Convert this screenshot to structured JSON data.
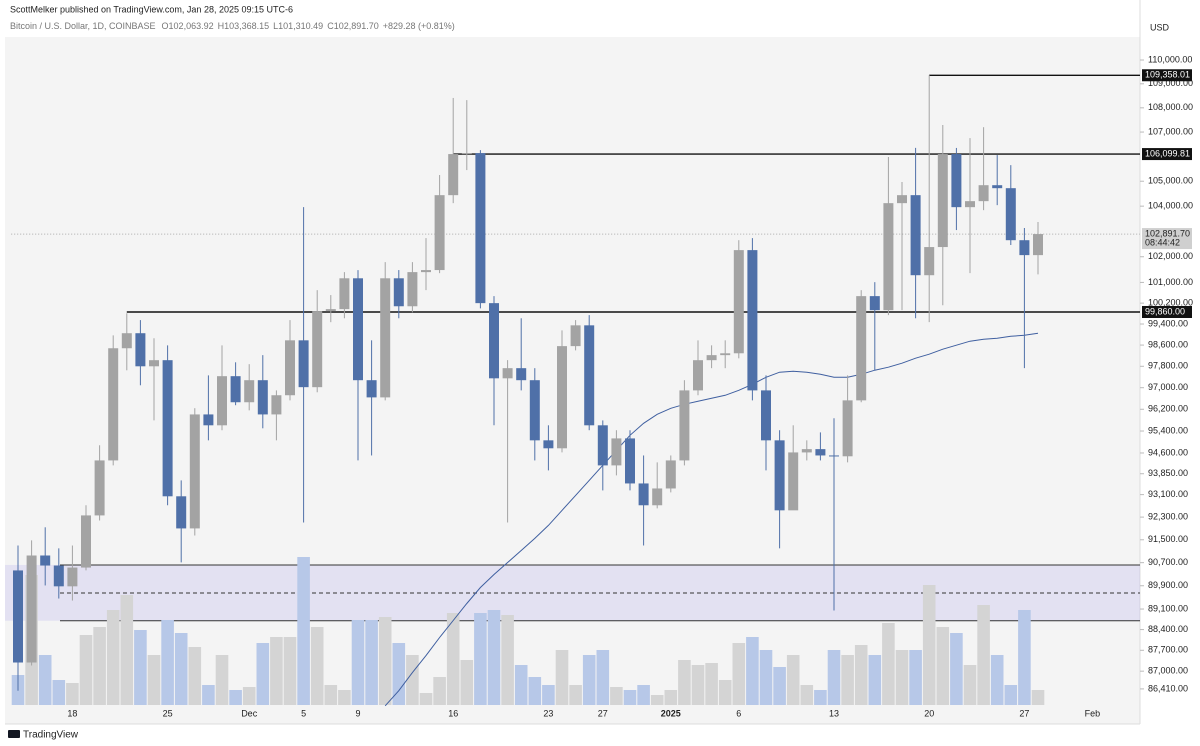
{
  "header": {
    "publisher": "ScottMelker published on TradingView.com, Jan 28, 2025 09:15 UTC-6",
    "symbol": "Bitcoin / U.S. Dollar, 1D, COINBASE",
    "ohlc": [
      "O102,063.92",
      "H103,368.15",
      "L101,310.49",
      "C102,891.70",
      "+829.28 (+0.81%)"
    ]
  },
  "chart_data": {
    "type": "candlestick",
    "currency": "USD",
    "log_scale": true,
    "ylim": [
      85845,
      112046
    ],
    "yticks": [
      {
        "value": 110000,
        "label": "110,000.00"
      },
      {
        "value": 109000,
        "label": "109,000.00"
      },
      {
        "value": 108000,
        "label": "108,000.00"
      },
      {
        "value": 107000,
        "label": "107,000.00"
      },
      {
        "value": 105000,
        "label": "105,000.00"
      },
      {
        "value": 104000,
        "label": "104,000.00"
      },
      {
        "value": 102000,
        "label": "102,000.00"
      },
      {
        "value": 101000,
        "label": "101,000.00"
      },
      {
        "value": 100200,
        "label": "100,200.00"
      },
      {
        "value": 99400,
        "label": "99,400.00"
      },
      {
        "value": 98600,
        "label": "98,600.00"
      },
      {
        "value": 97800,
        "label": "97,800.00"
      },
      {
        "value": 97000,
        "label": "97,000.00"
      },
      {
        "value": 96200,
        "label": "96,200.00"
      },
      {
        "value": 95400,
        "label": "95,400.00"
      },
      {
        "value": 94600,
        "label": "94,600.00"
      },
      {
        "value": 93850,
        "label": "93,850.00"
      },
      {
        "value": 93100,
        "label": "93,100.00"
      },
      {
        "value": 92300,
        "label": "92,300.00"
      },
      {
        "value": 91500,
        "label": "91,500.00"
      },
      {
        "value": 90700,
        "label": "90,700.00"
      },
      {
        "value": 89900,
        "label": "89,900.00"
      },
      {
        "value": 89100,
        "label": "89,100.00"
      },
      {
        "value": 88400,
        "label": "88,400.00"
      },
      {
        "value": 87700,
        "label": "87,700.00"
      },
      {
        "value": 87000,
        "label": "87,000.00"
      },
      {
        "value": 86410,
        "label": "86,410.00"
      }
    ],
    "categories": [
      null,
      null,
      null,
      null,
      "18",
      null,
      null,
      null,
      null,
      null,
      null,
      "25",
      null,
      null,
      null,
      null,
      null,
      "Dec",
      null,
      null,
      null,
      "5",
      null,
      null,
      null,
      "9",
      null,
      null,
      null,
      null,
      null,
      null,
      "16",
      null,
      null,
      null,
      null,
      null,
      null,
      "23",
      null,
      null,
      null,
      "27",
      null,
      null,
      null,
      null,
      "2025",
      null,
      null,
      null,
      null,
      "6",
      null,
      null,
      null,
      null,
      null,
      null,
      "13",
      null,
      null,
      null,
      null,
      null,
      null,
      "20",
      null,
      null,
      null,
      null,
      null,
      null,
      "27",
      null,
      null,
      null,
      null,
      "Feb",
      null,
      null,
      null
    ],
    "candles": {
      "open": [
        90430,
        87290,
        90950,
        90600,
        89880,
        90530,
        92360,
        94330,
        98480,
        99050,
        97800,
        98030,
        93040,
        91900,
        96010,
        95610,
        97430,
        96460,
        97280,
        96010,
        96720,
        98780,
        97020,
        99890,
        99970,
        101160,
        97280,
        96640,
        101160,
        100080,
        101400,
        101480,
        104440,
        106100,
        106140,
        100200,
        97350,
        97730,
        97280,
        95060,
        94770,
        98560,
        99350,
        95610,
        94150,
        95130,
        93500,
        92720,
        93320,
        94330,
        96900,
        98030,
        98220,
        98290,
        102260,
        96900,
        95060,
        92540,
        94620,
        94740,
        94510,
        94480,
        96530,
        100470,
        99930,
        104120,
        104440,
        101280,
        102380,
        106100,
        103960,
        104200,
        104840,
        104720,
        102650,
        102063.92,
        null,
        null,
        null,
        null,
        null,
        null,
        null
      ],
      "high": [
        91300,
        91480,
        91940,
        91200,
        91300,
        92720,
        94880,
        98970,
        99810,
        99550,
        98860,
        98590,
        93610,
        96240,
        97460,
        98590,
        97950,
        97880,
        98220,
        96900,
        99550,
        103960,
        100700,
        100510,
        101400,
        101480,
        98780,
        101790,
        101480,
        101790,
        102730,
        105250,
        108410,
        108320,
        106260,
        100470,
        98030,
        99620,
        97730,
        95610,
        99160,
        99550,
        99740,
        95790,
        95430,
        95430,
        94510,
        94260,
        94510,
        97280,
        98780,
        98590,
        98780,
        102650,
        102730,
        97460,
        95430,
        95610,
        95060,
        95350,
        95870,
        97460,
        100700,
        101010,
        105980,
        104970,
        106350,
        109358.01,
        107290,
        106350,
        106750,
        107200,
        106060,
        105650,
        103130,
        103368.15,
        null,
        null,
        null,
        null,
        null,
        null,
        null
      ],
      "low": [
        86350,
        87190,
        89910,
        89460,
        89390,
        90430,
        92180,
        94150,
        97650,
        97090,
        95790,
        92720,
        90710,
        91650,
        95060,
        95430,
        96350,
        96160,
        95500,
        95060,
        96530,
        92110,
        96830,
        99470,
        99620,
        94330,
        94510,
        96530,
        99620,
        99850,
        100700,
        101360,
        104120,
        105450,
        100000,
        95610,
        92110,
        96900,
        94330,
        93970,
        94620,
        98400,
        95430,
        93250,
        93790,
        93250,
        91300,
        92610,
        93180,
        94150,
        96720,
        97730,
        97730,
        98100,
        96530,
        93970,
        91200,
        92720,
        94330,
        94330,
        89050,
        94260,
        96460,
        97650,
        99740,
        99930,
        99620,
        99470,
        100120,
        103050,
        101360,
        103840,
        104040,
        102460,
        97730,
        101310.49,
        null,
        null,
        null,
        null,
        null,
        null,
        null
      ],
      "close": [
        87290,
        90950,
        90600,
        89880,
        90530,
        92360,
        94330,
        98480,
        99050,
        97800,
        98030,
        93040,
        91900,
        96010,
        95610,
        97430,
        96460,
        97280,
        96010,
        96720,
        98780,
        97020,
        99890,
        99970,
        101160,
        97280,
        96640,
        101160,
        100080,
        101400,
        101480,
        104440,
        106100,
        106140,
        100200,
        97350,
        97730,
        97280,
        95060,
        94770,
        98560,
        99350,
        95610,
        94150,
        95130,
        93500,
        92720,
        93320,
        94330,
        96900,
        98030,
        98220,
        98290,
        102260,
        96900,
        95060,
        92540,
        94620,
        94740,
        94510,
        94480,
        96530,
        100470,
        99930,
        104120,
        104440,
        101280,
        102380,
        106100,
        103960,
        104200,
        104840,
        104720,
        102650,
        102063.92,
        102891.7,
        null,
        null,
        null,
        null,
        null,
        null,
        null
      ]
    },
    "volume": [
      30,
      130,
      50,
      25,
      22,
      70,
      78,
      95,
      110,
      75,
      50,
      85,
      72,
      58,
      20,
      50,
      15,
      18,
      62,
      68,
      68,
      148,
      78,
      20,
      15,
      85,
      85,
      88,
      62,
      50,
      12,
      28,
      92,
      45,
      92,
      95,
      90,
      40,
      28,
      20,
      55,
      20,
      50,
      55,
      18,
      15,
      20,
      10,
      15,
      45,
      40,
      42,
      25,
      62,
      68,
      55,
      38,
      50,
      20,
      15,
      55,
      50,
      60,
      50,
      82,
      55,
      55,
      120,
      78,
      72,
      40,
      100,
      50,
      20,
      95,
      15,
      null,
      null,
      null,
      null,
      null,
      null,
      null
    ],
    "ma": [
      null,
      null,
      null,
      null,
      null,
      null,
      null,
      null,
      null,
      null,
      null,
      null,
      null,
      null,
      null,
      null,
      null,
      null,
      null,
      null,
      null,
      null,
      null,
      null,
      null,
      null,
      null,
      85852,
      86350,
      86953,
      87523,
      88132,
      88708,
      89290,
      89840,
      90290,
      90707,
      91126,
      91548,
      92006,
      92538,
      93073,
      93610,
      94152,
      94696,
      95243,
      95682,
      96014,
      96236,
      96384,
      96495,
      96606,
      96718,
      96904,
      97127,
      97389,
      97577,
      97615,
      97577,
      97502,
      97389,
      97389,
      97502,
      97653,
      97766,
      97915,
      98103,
      98254,
      98443,
      98594,
      98745,
      98820,
      98858,
      98934,
      98972,
      99048,
      null,
      null,
      null,
      null,
      null,
      null,
      null
    ],
    "levels": [
      {
        "value": 109358.01,
        "label": "109,358.01"
      },
      {
        "value": 106099.81,
        "label": "106,099.81"
      },
      {
        "value": 99860,
        "label": "99,860.00"
      }
    ],
    "zone": {
      "top": 90620,
      "bottom": 88700,
      "mid": 89650
    },
    "last_price_label": "102,891.70",
    "countdown": "08:44:42",
    "up_color": "#a3a3a3",
    "down_color": "#4f70a8",
    "up_volume_color": "#d4d4d4",
    "down_volume_color": "#b7c8e8",
    "ma_color": "#3f5fa0"
  },
  "footer": "TradingView"
}
